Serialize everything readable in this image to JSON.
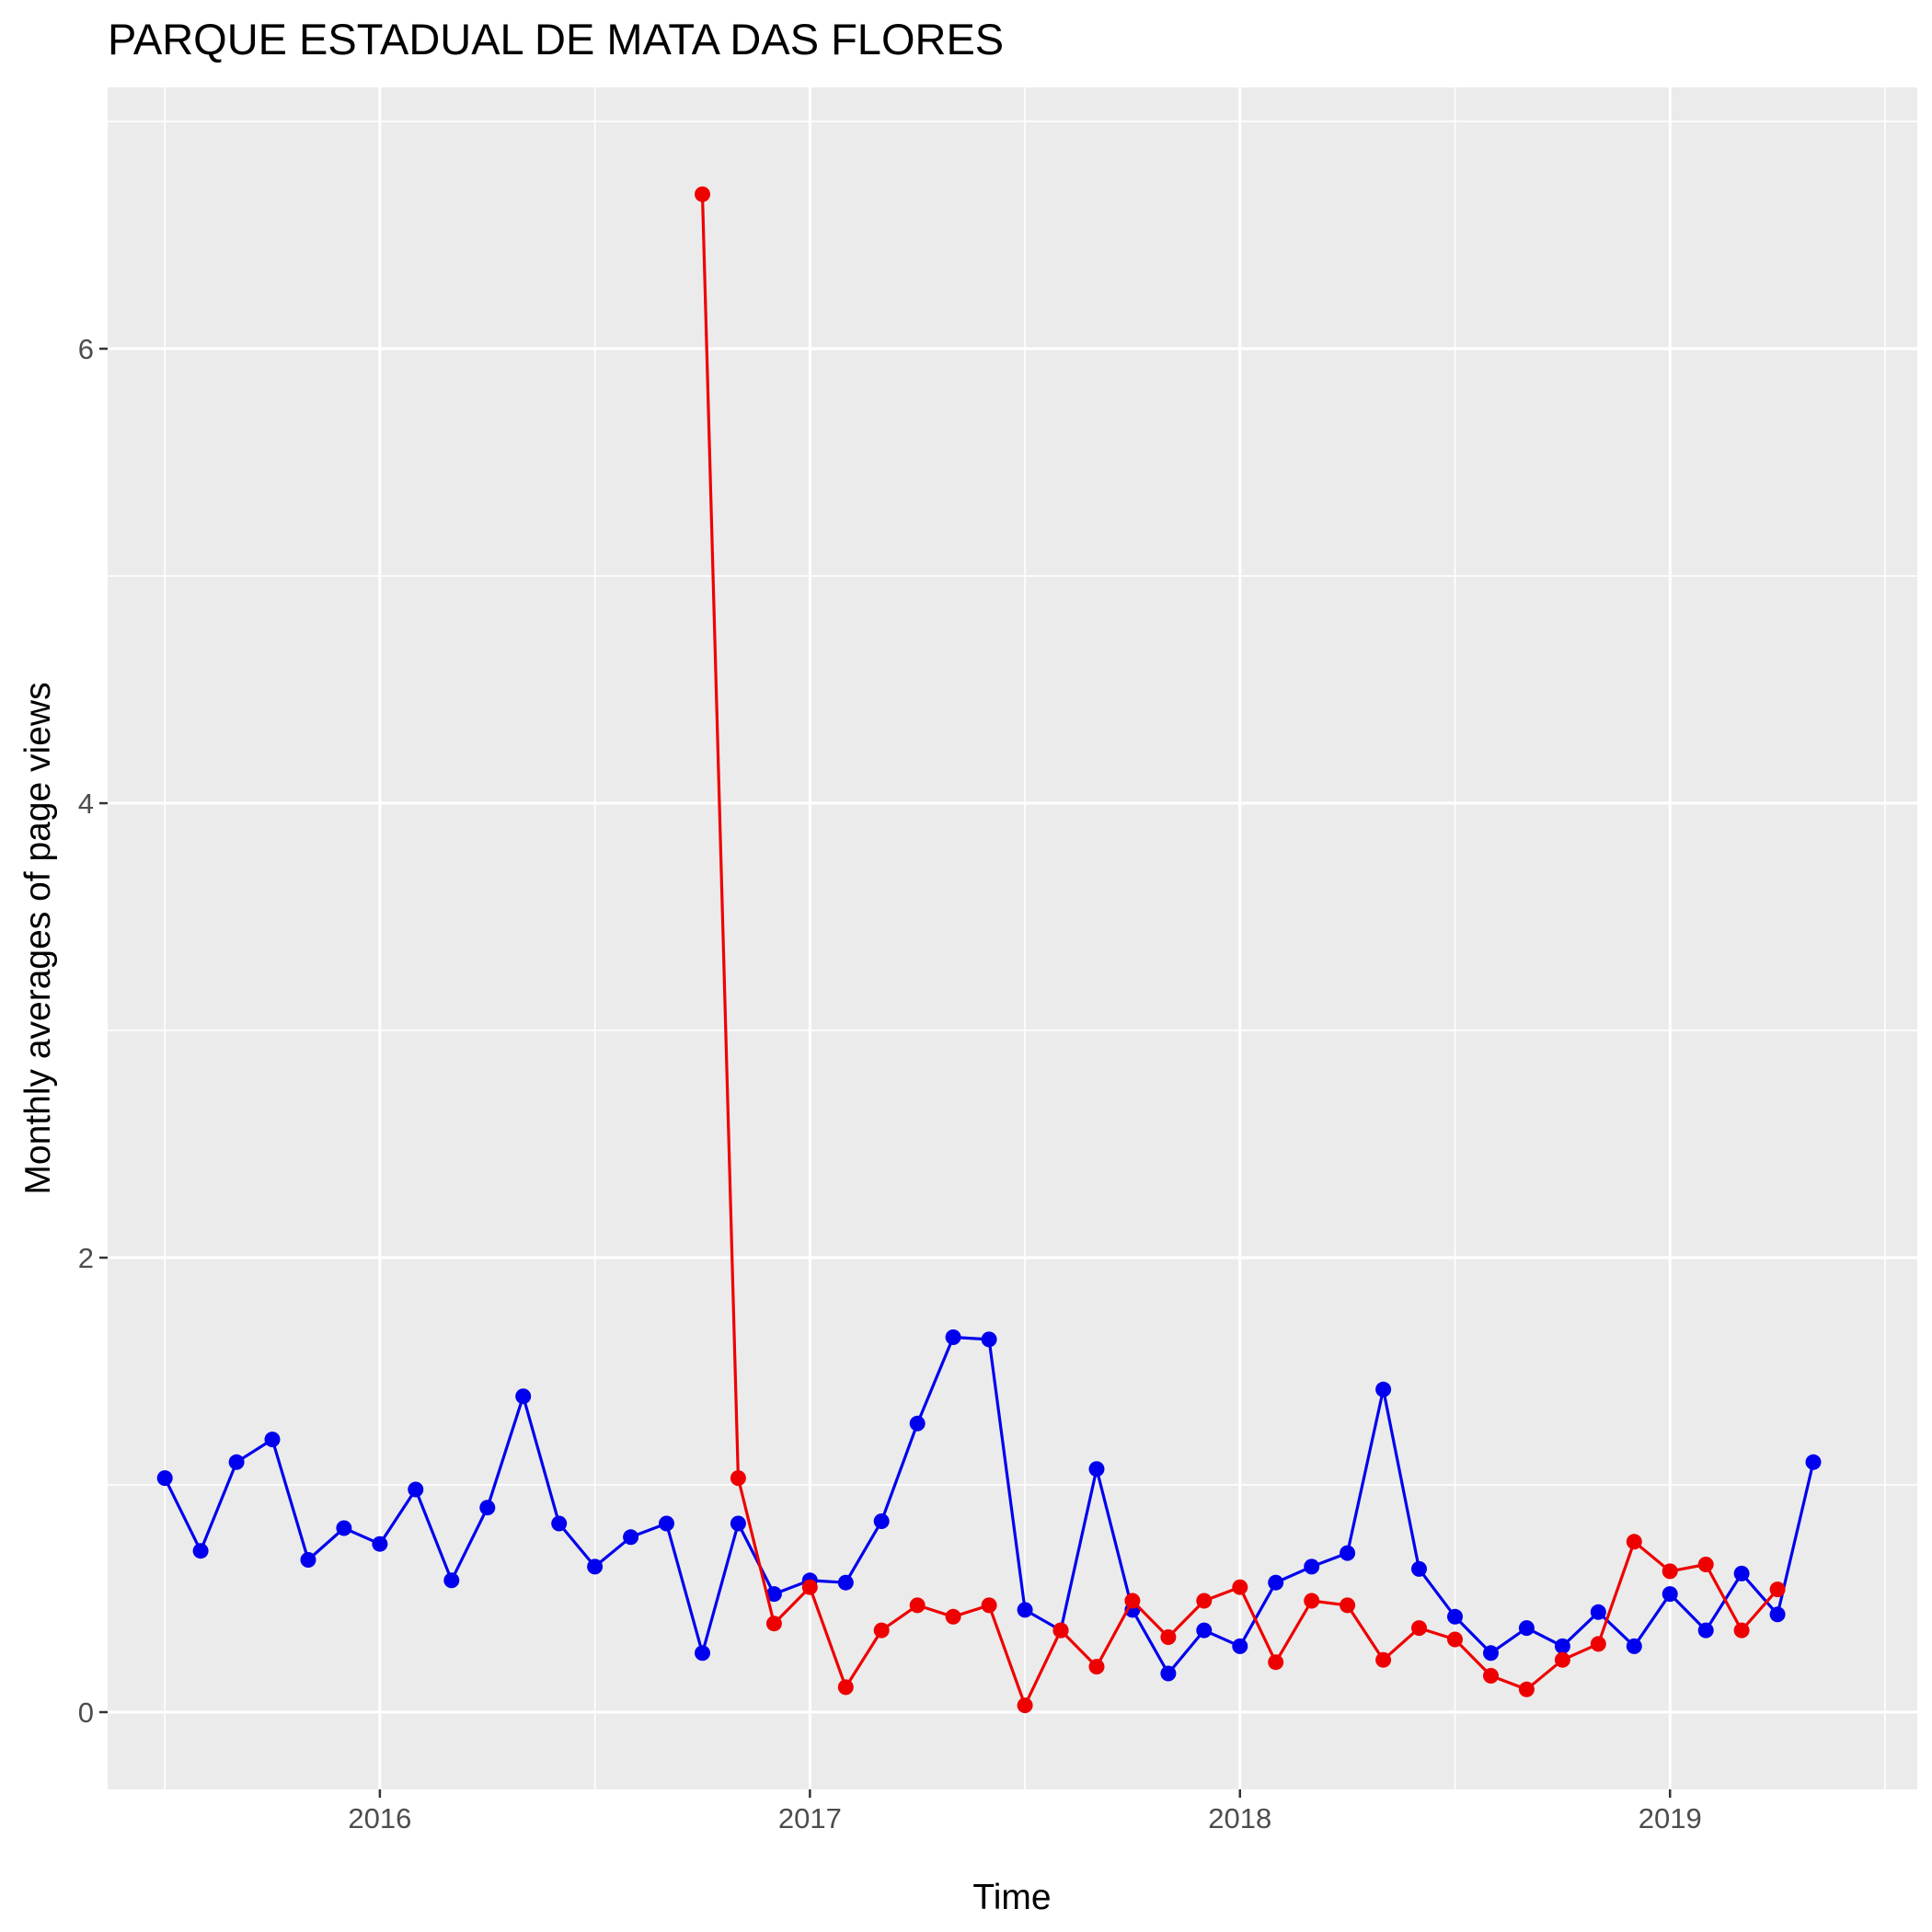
{
  "chart_data": {
    "type": "line",
    "title": "PARQUE ESTADUAL DE MATA DAS FLORES",
    "xlabel": "Time",
    "ylabel": "Monthly averages of page views",
    "x_tick_labels": [
      "2016",
      "2017",
      "2018",
      "2019"
    ],
    "y_tick_labels": [
      "0",
      "2",
      "4",
      "6"
    ],
    "x_ticks": [
      2016,
      2017,
      2018,
      2019
    ],
    "y_ticks": [
      0,
      2,
      4,
      6
    ],
    "xlim": [
      2015.367,
      2019.575
    ],
    "ylim": [
      -0.34,
      7.15
    ],
    "grid": true,
    "legend": "none",
    "series": [
      {
        "color": "#0000ee",
        "x": [
          "2015-07",
          "2015-08",
          "2015-09",
          "2015-10",
          "2015-11",
          "2015-12",
          "2016-01",
          "2016-02",
          "2016-03",
          "2016-04",
          "2016-05",
          "2016-06",
          "2016-07",
          "2016-08",
          "2016-09",
          "2016-10",
          "2016-11",
          "2016-12",
          "2017-01",
          "2017-02",
          "2017-03",
          "2017-04",
          "2017-05",
          "2017-06",
          "2017-07",
          "2017-08",
          "2017-09",
          "2017-10",
          "2017-11",
          "2017-12",
          "2018-01",
          "2018-02",
          "2018-03",
          "2018-04",
          "2018-05",
          "2018-06",
          "2018-07",
          "2018-08",
          "2018-09",
          "2018-10",
          "2018-11",
          "2018-12",
          "2019-01",
          "2019-02",
          "2019-03",
          "2019-04",
          "2019-05"
        ],
        "values": [
          1.03,
          0.71,
          1.1,
          1.2,
          0.67,
          0.81,
          0.74,
          0.98,
          0.58,
          0.9,
          1.39,
          0.83,
          0.64,
          0.77,
          0.83,
          0.26,
          0.83,
          0.52,
          0.58,
          0.57,
          0.84,
          1.27,
          1.65,
          1.64,
          0.45,
          0.36,
          1.07,
          0.45,
          0.17,
          0.36,
          0.29,
          0.57,
          0.64,
          0.7,
          1.42,
          0.63,
          0.42,
          0.26,
          0.37,
          0.29,
          0.44,
          0.29,
          0.52,
          0.36,
          0.61,
          0.43,
          1.1
        ]
      },
      {
        "color": "#ee0000",
        "x": [
          "2016-10",
          "2016-11",
          "2016-12",
          "2017-01",
          "2017-02",
          "2017-03",
          "2017-04",
          "2017-05",
          "2017-06",
          "2017-07",
          "2017-08",
          "2017-09",
          "2017-10",
          "2017-11",
          "2017-12",
          "2018-01",
          "2018-02",
          "2018-03",
          "2018-04",
          "2018-05",
          "2018-06",
          "2018-07",
          "2018-08",
          "2018-09",
          "2018-10",
          "2018-11",
          "2018-12",
          "2019-01",
          "2019-02",
          "2019-03",
          "2019-04"
        ],
        "values": [
          6.68,
          1.03,
          0.39,
          0.55,
          0.11,
          0.36,
          0.47,
          0.42,
          0.47,
          0.03,
          0.36,
          0.2,
          0.49,
          0.33,
          0.49,
          0.55,
          0.22,
          0.49,
          0.47,
          0.23,
          0.37,
          0.32,
          0.16,
          0.1,
          0.23,
          0.3,
          0.75,
          0.62,
          0.65,
          0.36,
          0.54
        ]
      }
    ]
  }
}
